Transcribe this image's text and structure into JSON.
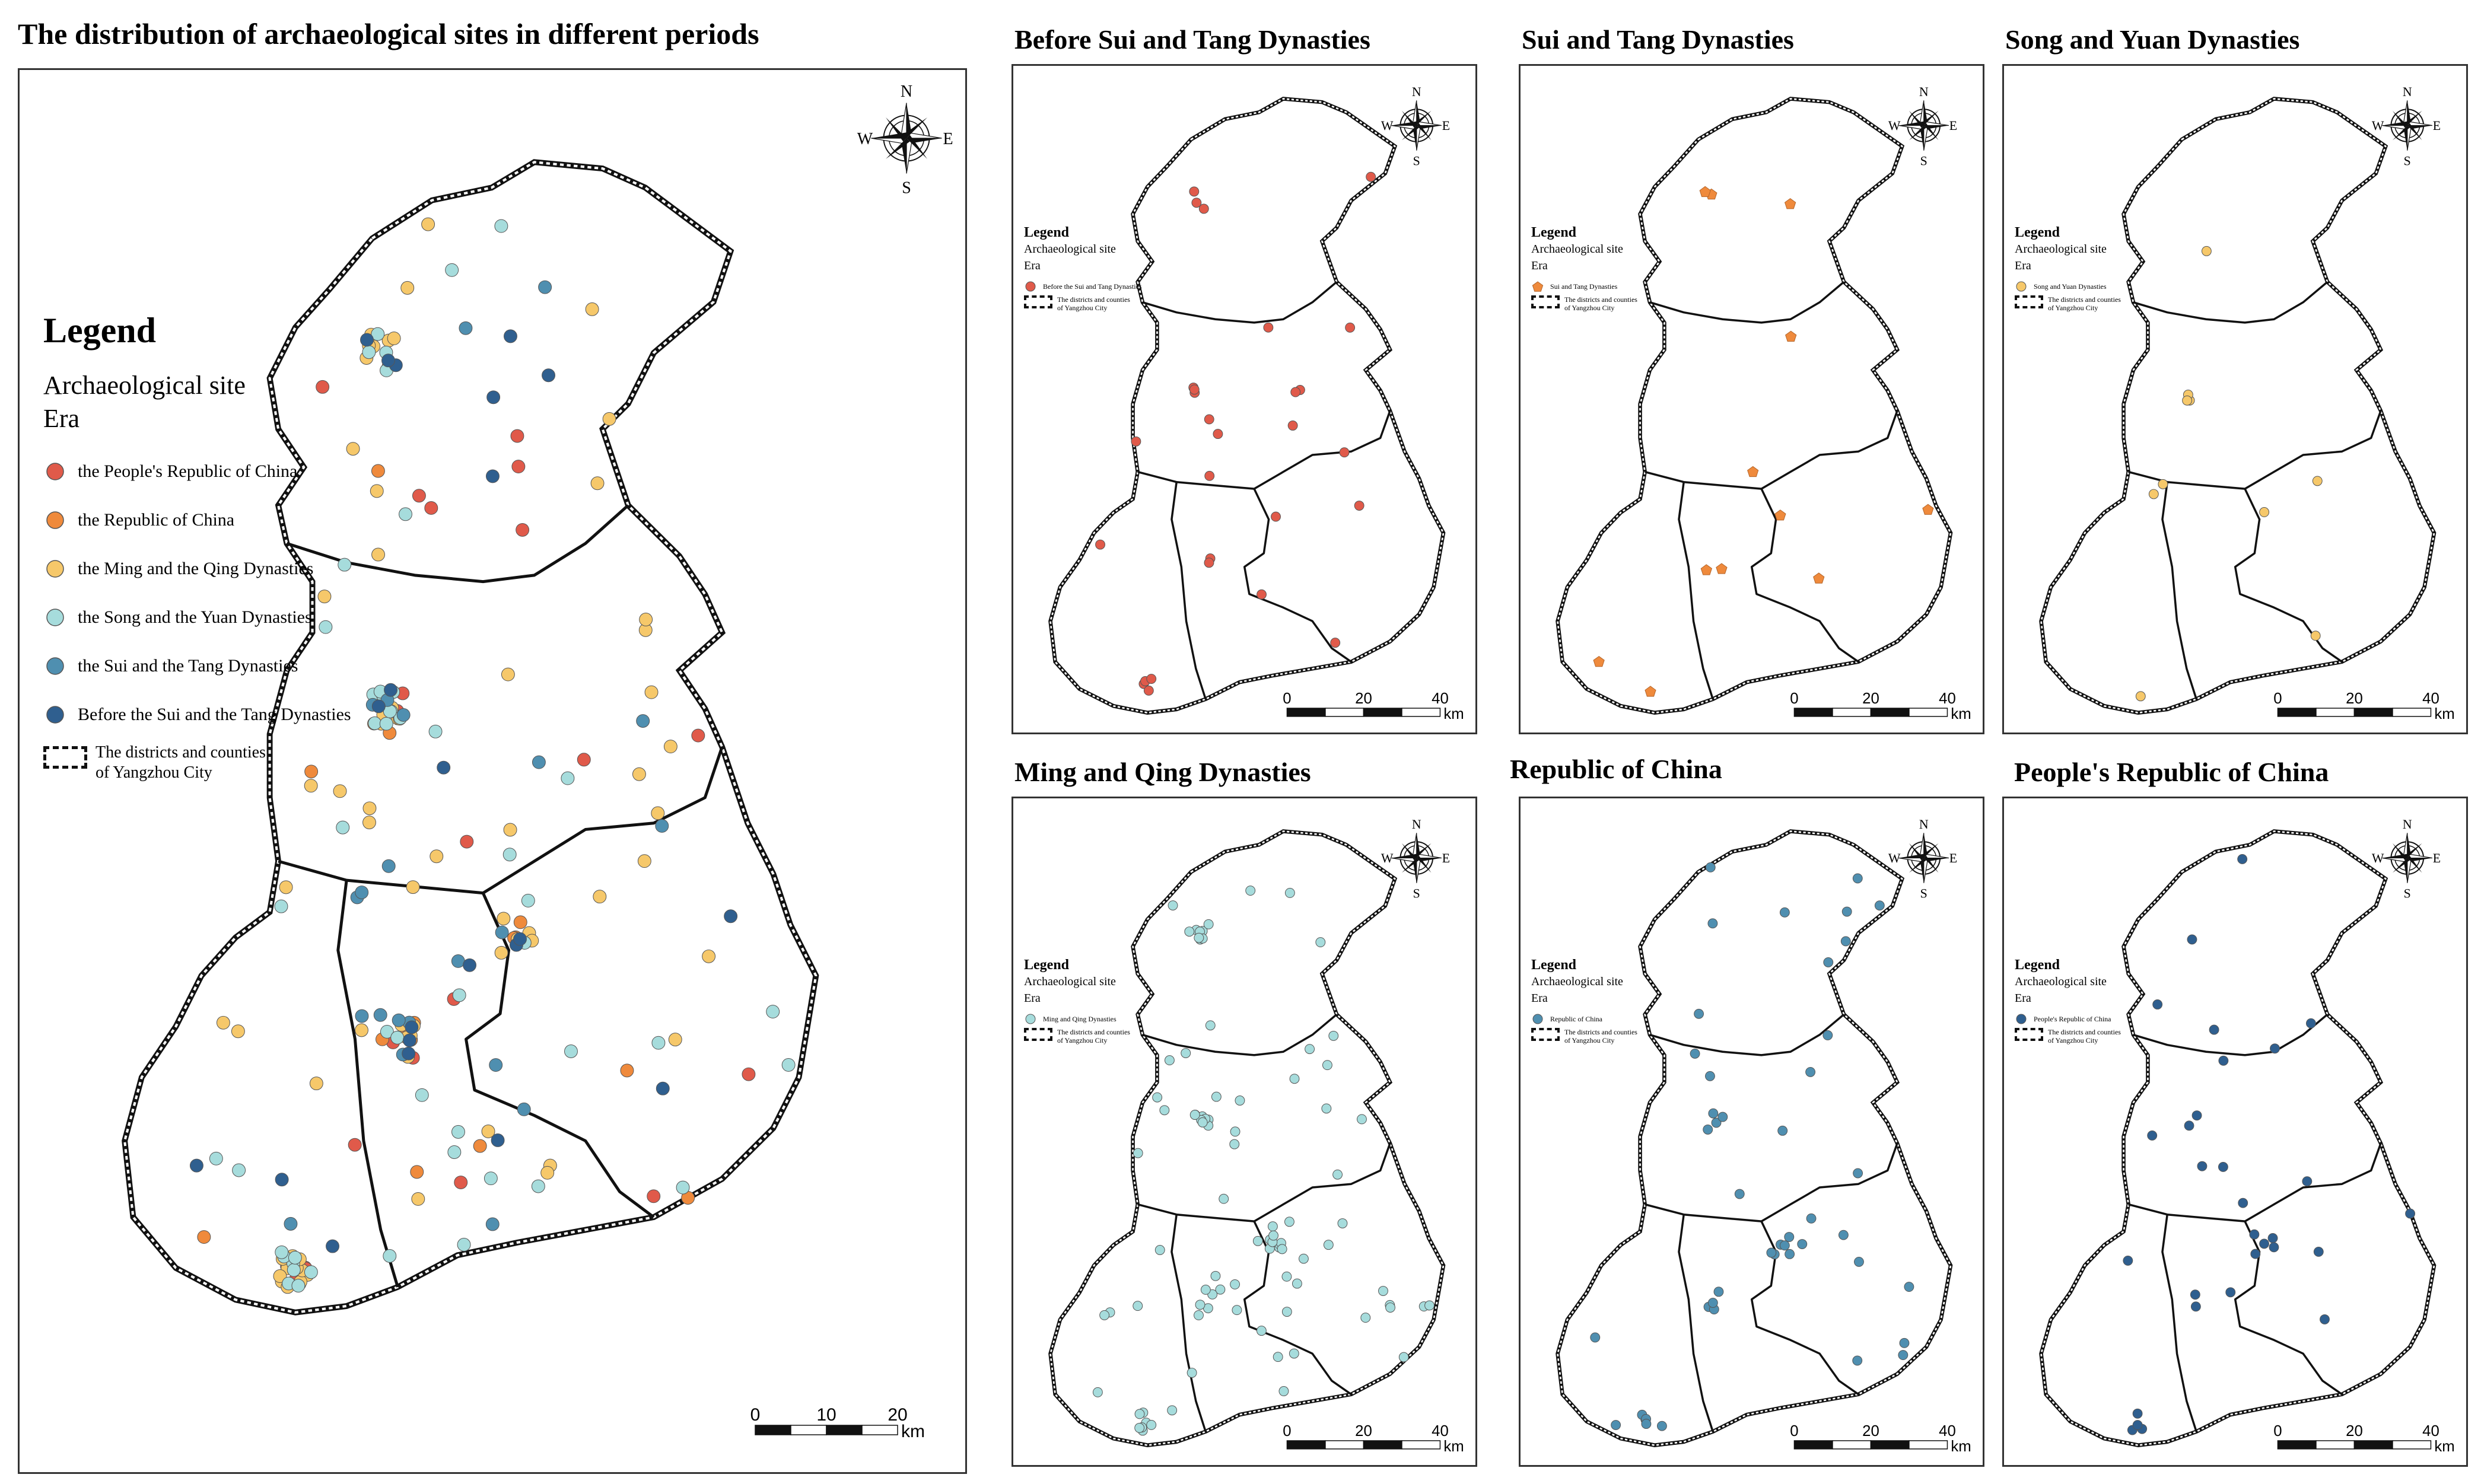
{
  "main": {
    "title": "The distribution of archaeological sites in different periods",
    "legend": {
      "heading": "Legend",
      "subheading": "Archaeological site",
      "field": "Era",
      "items": [
        {
          "label": "the People's Republic of China",
          "color": "#e05a4a",
          "shape": "circle"
        },
        {
          "label": "the Republic of China",
          "color": "#ef8a3c",
          "shape": "circle"
        },
        {
          "label": "the Ming and the Qing Dynasties",
          "color": "#f6c86a",
          "shape": "circle"
        },
        {
          "label": "the Song and the Yuan Dynasties",
          "color": "#a6dcdc",
          "shape": "circle"
        },
        {
          "label": "the Sui and the Tang Dynasties",
          "color": "#4f8fb0",
          "shape": "circle"
        },
        {
          "label": "Before the Sui and the Tang Dynasties",
          "color": "#2f5f8f",
          "shape": "circle"
        }
      ],
      "boundary_label_line1": "The districts and counties",
      "boundary_label_line2": "of Yangzhou City"
    },
    "scale": {
      "ticks": [
        "0",
        "10",
        "20"
      ],
      "unit": "km"
    }
  },
  "compass": {
    "n": "N",
    "s": "S",
    "e": "E",
    "w": "W"
  },
  "panels": [
    {
      "title": "Before Sui and Tang Dynasties",
      "legend_item": "Before the Sui and Tang Dynasties",
      "color": "#e05a4a",
      "shape": "circle"
    },
    {
      "title": "Sui and Tang Dynasties",
      "legend_item": "Sui and Tang Dynasties",
      "color": "#ef8a3c",
      "shape": "pentagon"
    },
    {
      "title": "Song and Yuan Dynasties",
      "legend_item": "Song and Yuan Dynasties",
      "color": "#f6c86a",
      "shape": "circle"
    },
    {
      "title": "Ming and Qing Dynasties",
      "legend_item": "Ming and Qing Dynasties",
      "color": "#a6dcdc",
      "shape": "circle"
    },
    {
      "title": "Republic of China",
      "legend_item": "Republic of China",
      "color": "#4f8fb0",
      "shape": "circle"
    },
    {
      "title": "People's Republic of China",
      "legend_item": "People's Republic of China",
      "color": "#2f5f8f",
      "shape": "circle"
    }
  ],
  "panel_legend": {
    "heading": "Legend",
    "subheading": "Archaeological site",
    "field": "Era",
    "boundary_label_line1": "The districts and counties",
    "boundary_label_line2": "of Yangzhou City"
  },
  "panel_scale": {
    "ticks": [
      "0",
      "20",
      "40"
    ],
    "unit": "km"
  }
}
